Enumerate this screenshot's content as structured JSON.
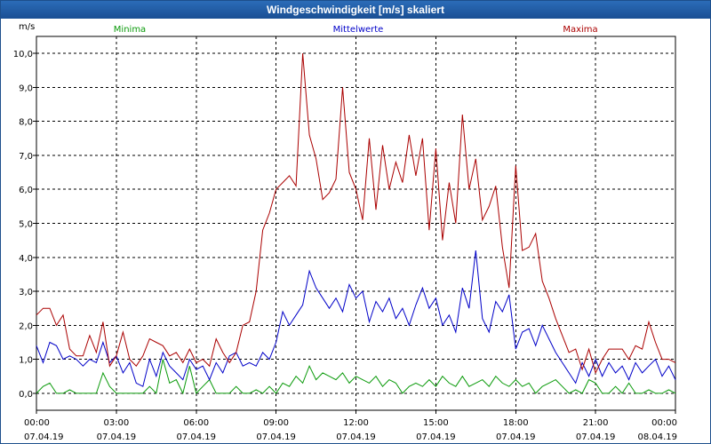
{
  "window": {
    "title": "Windgeschwindigkeit [m/s] skaliert"
  },
  "chart_data": {
    "type": "line",
    "title": "Windgeschwindigkeit [m/s] skaliert",
    "ylabel": "m/s",
    "xlabel": "",
    "ylim": [
      -0.5,
      10.5
    ],
    "xlim": [
      0,
      24
    ],
    "grid": true,
    "legend_position": "top",
    "yticks": [
      0,
      1,
      2,
      3,
      4,
      5,
      6,
      7,
      8,
      9,
      10
    ],
    "ytick_labels": [
      "0,0",
      "1,0",
      "2,0",
      "3,0",
      "4,0",
      "5,0",
      "6,0",
      "7,0",
      "8,0",
      "9,0",
      "10,0"
    ],
    "xticks": [
      0,
      3,
      6,
      9,
      12,
      15,
      18,
      21,
      24
    ],
    "xtick_labels": [
      [
        "00:00",
        "07.04.19"
      ],
      [
        "03:00",
        "07.04.19"
      ],
      [
        "06:00",
        "07.04.19"
      ],
      [
        "09:00",
        "07.04.19"
      ],
      [
        "12:00",
        "07.04.19"
      ],
      [
        "15:00",
        "07.04.19"
      ],
      [
        "18:00",
        "07.04.19"
      ],
      [
        "21:00",
        "07.04.19"
      ],
      [
        "00:00",
        "08.04.19"
      ]
    ],
    "series": [
      {
        "name": "Minima",
        "color": "#0a9a0a",
        "x": [
          0,
          0.25,
          0.5,
          0.75,
          1,
          1.25,
          1.5,
          1.75,
          2,
          2.25,
          2.5,
          2.75,
          3,
          3.25,
          3.5,
          3.75,
          4,
          4.25,
          4.5,
          4.75,
          5,
          5.25,
          5.5,
          5.75,
          6,
          6.25,
          6.5,
          6.75,
          7,
          7.25,
          7.5,
          7.75,
          8,
          8.25,
          8.5,
          8.75,
          9,
          9.25,
          9.5,
          9.75,
          10,
          10.25,
          10.5,
          10.75,
          11,
          11.25,
          11.5,
          11.75,
          12,
          12.25,
          12.5,
          12.75,
          13,
          13.25,
          13.5,
          13.75,
          14,
          14.25,
          14.5,
          14.75,
          15,
          15.25,
          15.5,
          15.75,
          16,
          16.25,
          16.5,
          16.75,
          17,
          17.25,
          17.5,
          17.75,
          18,
          18.25,
          18.5,
          18.75,
          19,
          19.25,
          19.5,
          19.75,
          20,
          20.25,
          20.5,
          20.75,
          21,
          21.25,
          21.5,
          21.75,
          22,
          22.25,
          22.5,
          22.75,
          23,
          23.25,
          23.5,
          23.75,
          24
        ],
        "y": [
          0.0,
          0.2,
          0.3,
          0.0,
          0.0,
          0.1,
          0.0,
          0.0,
          0.0,
          0.0,
          0.6,
          0.2,
          0.0,
          0.0,
          0.0,
          0.0,
          0.0,
          0.2,
          0.0,
          1.0,
          0.3,
          0.4,
          0.0,
          0.8,
          0.0,
          0.2,
          0.4,
          0.0,
          0.0,
          0.0,
          0.2,
          0.0,
          0.0,
          0.1,
          0.0,
          0.2,
          0.0,
          0.3,
          0.2,
          0.5,
          0.3,
          0.8,
          0.4,
          0.6,
          0.5,
          0.4,
          0.6,
          0.3,
          0.5,
          0.4,
          0.3,
          0.5,
          0.2,
          0.4,
          0.3,
          0.0,
          0.2,
          0.3,
          0.2,
          0.4,
          0.2,
          0.5,
          0.3,
          0.2,
          0.5,
          0.2,
          0.3,
          0.4,
          0.2,
          0.5,
          0.3,
          0.2,
          0.4,
          0.2,
          0.3,
          0.0,
          0.2,
          0.3,
          0.4,
          0.2,
          0.0,
          0.1,
          0.0,
          0.4,
          0.3,
          0.0,
          0.0,
          0.2,
          0.0,
          0.3,
          0.0,
          0.0,
          0.1,
          0.0,
          0.0,
          0.1,
          0.0
        ],
        "style": "solid"
      },
      {
        "name": "Mittelwerte",
        "color": "#0000c8",
        "x": [
          0,
          0.25,
          0.5,
          0.75,
          1,
          1.25,
          1.5,
          1.75,
          2,
          2.25,
          2.5,
          2.75,
          3,
          3.25,
          3.5,
          3.75,
          4,
          4.25,
          4.5,
          4.75,
          5,
          5.25,
          5.5,
          5.75,
          6,
          6.25,
          6.5,
          6.75,
          7,
          7.25,
          7.5,
          7.75,
          8,
          8.25,
          8.5,
          8.75,
          9,
          9.25,
          9.5,
          9.75,
          10,
          10.25,
          10.5,
          10.75,
          11,
          11.25,
          11.5,
          11.75,
          12,
          12.25,
          12.5,
          12.75,
          13,
          13.25,
          13.5,
          13.75,
          14,
          14.25,
          14.5,
          14.75,
          15,
          15.25,
          15.5,
          15.75,
          16,
          16.25,
          16.5,
          16.75,
          17,
          17.25,
          17.5,
          17.75,
          18,
          18.25,
          18.5,
          18.75,
          19,
          19.25,
          19.5,
          19.75,
          20,
          20.25,
          20.5,
          20.75,
          21,
          21.25,
          21.5,
          21.75,
          22,
          22.25,
          22.5,
          22.75,
          23,
          23.25,
          23.5,
          23.75,
          24
        ],
        "y": [
          1.4,
          0.9,
          1.5,
          1.4,
          1.0,
          1.1,
          1.0,
          0.8,
          1.0,
          0.9,
          1.5,
          0.9,
          1.1,
          0.6,
          0.9,
          0.3,
          0.2,
          1.0,
          0.5,
          1.2,
          0.8,
          0.6,
          0.4,
          1.0,
          0.7,
          0.8,
          0.4,
          0.9,
          0.6,
          1.1,
          1.2,
          0.8,
          0.9,
          0.8,
          1.2,
          1.0,
          1.5,
          2.4,
          2.0,
          2.3,
          2.6,
          3.6,
          3.1,
          2.8,
          2.5,
          2.8,
          2.4,
          3.2,
          2.8,
          3.0,
          2.1,
          2.7,
          2.4,
          2.8,
          2.2,
          2.5,
          2.0,
          2.6,
          3.1,
          2.5,
          2.8,
          2.0,
          2.3,
          1.8,
          3.1,
          2.5,
          4.2,
          2.2,
          1.8,
          2.7,
          2.4,
          2.9,
          1.3,
          1.8,
          1.9,
          1.4,
          2.0,
          1.6,
          1.2,
          0.9,
          0.6,
          0.3,
          0.9,
          0.5,
          1.0,
          0.5,
          0.9,
          0.6,
          0.8,
          0.4,
          0.9,
          0.6,
          0.8,
          1.0,
          0.5,
          0.8,
          0.4
        ],
        "style": "solid"
      },
      {
        "name": "Maxima",
        "color": "#aa0000",
        "x": [
          0,
          0.25,
          0.5,
          0.75,
          1,
          1.25,
          1.5,
          1.75,
          2,
          2.25,
          2.5,
          2.75,
          3,
          3.25,
          3.5,
          3.75,
          4,
          4.25,
          4.5,
          4.75,
          5,
          5.25,
          5.5,
          5.75,
          6,
          6.25,
          6.5,
          6.75,
          7,
          7.25,
          7.5,
          7.75,
          8,
          8.25,
          8.5,
          8.75,
          9,
          9.25,
          9.5,
          9.75,
          10,
          10.25,
          10.5,
          10.75,
          11,
          11.25,
          11.5,
          11.75,
          12,
          12.25,
          12.5,
          12.75,
          13,
          13.25,
          13.5,
          13.75,
          14,
          14.25,
          14.5,
          14.75,
          15,
          15.25,
          15.5,
          15.75,
          16,
          16.25,
          16.5,
          16.75,
          17,
          17.25,
          17.5,
          17.75,
          18,
          18.25,
          18.5,
          18.75,
          19,
          19.25,
          19.5,
          19.75,
          20,
          20.25,
          20.5,
          20.75,
          21,
          21.25,
          21.5,
          21.75,
          22,
          22.25,
          22.5,
          22.75,
          23,
          23.25,
          23.5,
          23.75,
          24
        ],
        "y": [
          2.3,
          2.5,
          2.5,
          2.0,
          2.3,
          1.3,
          1.1,
          1.1,
          1.7,
          1.2,
          2.1,
          0.8,
          1.1,
          1.8,
          1.0,
          0.8,
          1.1,
          1.6,
          1.5,
          1.4,
          1.1,
          1.2,
          0.9,
          1.3,
          0.9,
          1.0,
          0.8,
          1.6,
          1.2,
          0.9,
          1.2,
          2.0,
          2.1,
          3.0,
          4.8,
          5.3,
          6.0,
          6.2,
          6.4,
          6.1,
          10.0,
          7.6,
          6.9,
          5.7,
          5.9,
          6.3,
          9.0,
          6.5,
          6.0,
          5.1,
          7.5,
          5.4,
          7.3,
          6.0,
          6.8,
          6.2,
          7.6,
          6.4,
          7.5,
          4.8,
          7.2,
          4.5,
          6.2,
          5.0,
          8.2,
          6.0,
          6.9,
          5.1,
          5.5,
          6.1,
          4.3,
          3.1,
          6.7,
          4.2,
          4.3,
          4.7,
          3.3,
          2.8,
          2.2,
          1.7,
          1.2,
          1.3,
          0.7,
          1.3,
          0.6,
          1.0,
          1.3,
          1.3,
          1.3,
          1.0,
          1.4,
          1.3,
          2.1,
          1.5,
          1.0,
          1.0,
          0.9
        ],
        "style": "solid"
      }
    ]
  }
}
